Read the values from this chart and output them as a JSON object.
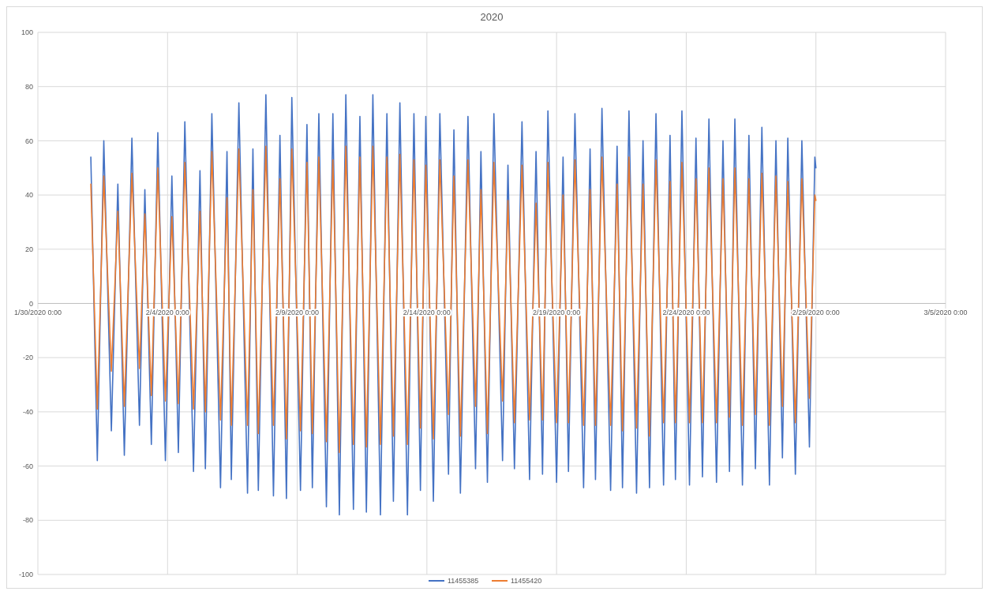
{
  "chart_data": {
    "type": "line",
    "title": "2020",
    "x": [
      "2020-02-01T01:00",
      "2020-02-01T07:00",
      "2020-02-01T13:00",
      "2020-02-01T20:00",
      "2020-02-02T02:00",
      "2020-02-02T08:00",
      "2020-02-02T15:00",
      "2020-02-02T22:00",
      "2020-02-03T03:00",
      "2020-02-03T09:00",
      "2020-02-03T15:00",
      "2020-02-03T22:00",
      "2020-02-04T04:00",
      "2020-02-04T10:00",
      "2020-02-04T16:00",
      "2020-02-05T00:00",
      "2020-02-05T06:00",
      "2020-02-05T11:00",
      "2020-02-05T17:00",
      "2020-02-06T01:00",
      "2020-02-06T07:00",
      "2020-02-06T11:00",
      "2020-02-06T18:00",
      "2020-02-07T02:00",
      "2020-02-07T07:00",
      "2020-02-07T12:00",
      "2020-02-07T19:00",
      "2020-02-08T02:00",
      "2020-02-08T08:00",
      "2020-02-08T14:00",
      "2020-02-08T19:00",
      "2020-02-09T03:00",
      "2020-02-09T09:00",
      "2020-02-09T14:00",
      "2020-02-09T20:00",
      "2020-02-10T03:00",
      "2020-02-10T09:00",
      "2020-02-10T15:00",
      "2020-02-10T21:00",
      "2020-02-11T04:00",
      "2020-02-11T10:00",
      "2020-02-11T16:00",
      "2020-02-11T22:00",
      "2020-02-12T05:00",
      "2020-02-12T11:00",
      "2020-02-12T17:00",
      "2020-02-12T23:00",
      "2020-02-13T06:00",
      "2020-02-13T12:00",
      "2020-02-13T18:00",
      "2020-02-13T23:00",
      "2020-02-14T06:00",
      "2020-02-14T12:00",
      "2020-02-14T20:00",
      "2020-02-15T01:00",
      "2020-02-15T07:00",
      "2020-02-15T14:00",
      "2020-02-15T21:00",
      "2020-02-16T02:00",
      "2020-02-16T08:00",
      "2020-02-16T14:00",
      "2020-02-16T22:00",
      "2020-02-17T03:00",
      "2020-02-17T09:00",
      "2020-02-17T16:00",
      "2020-02-17T23:00",
      "2020-02-18T05:00",
      "2020-02-18T11:00",
      "2020-02-18T16:00",
      "2020-02-19T00:00",
      "2020-02-19T06:00",
      "2020-02-19T11:00",
      "2020-02-19T17:00",
      "2020-02-20T01:00",
      "2020-02-20T07:00",
      "2020-02-20T12:00",
      "2020-02-20T18:00",
      "2020-02-21T02:00",
      "2020-02-21T08:00",
      "2020-02-21T13:00",
      "2020-02-21T19:00",
      "2020-02-22T02:00",
      "2020-02-22T08:00",
      "2020-02-22T14:00",
      "2020-02-22T20:00",
      "2020-02-23T03:00",
      "2020-02-23T09:00",
      "2020-02-23T14:00",
      "2020-02-23T20:00",
      "2020-02-24T03:00",
      "2020-02-24T09:00",
      "2020-02-24T15:00",
      "2020-02-24T21:00",
      "2020-02-25T04:00",
      "2020-02-25T10:00",
      "2020-02-25T16:00",
      "2020-02-25T21:00",
      "2020-02-26T04:00",
      "2020-02-26T10:00",
      "2020-02-26T16:00",
      "2020-02-26T22:00",
      "2020-02-27T05:00",
      "2020-02-27T11:00",
      "2020-02-27T17:00",
      "2020-02-27T22:00",
      "2020-02-28T05:00",
      "2020-02-28T11:00",
      "2020-02-28T18:00",
      "2020-02-28T23:00",
      "2020-02-29T00:00"
    ],
    "series": [
      {
        "name": "11455385",
        "color": "#4472c4",
        "values": [
          54,
          -58,
          60,
          -47,
          44,
          -56,
          61,
          -45,
          42,
          -52,
          63,
          -58,
          47,
          -55,
          67,
          -62,
          49,
          -61,
          70,
          -68,
          56,
          -65,
          74,
          -70,
          57,
          -69,
          77,
          -71,
          62,
          -72,
          76,
          -69,
          66,
          -68,
          70,
          -75,
          70,
          -78,
          77,
          -76,
          69,
          -77,
          77,
          -78,
          70,
          -73,
          74,
          -78,
          70,
          -69,
          69,
          -73,
          70,
          -63,
          64,
          -70,
          69,
          -61,
          56,
          -66,
          70,
          -58,
          51,
          -61,
          67,
          -65,
          56,
          -63,
          71,
          -66,
          54,
          -62,
          70,
          -68,
          57,
          -65,
          72,
          -69,
          58,
          -68,
          71,
          -70,
          60,
          -68,
          70,
          -67,
          62,
          -65,
          71,
          -67,
          61,
          -64,
          68,
          -66,
          60,
          -62,
          68,
          -67,
          62,
          -61,
          65,
          -67,
          60,
          -57,
          61,
          -63,
          60,
          -53,
          54,
          50
        ]
      },
      {
        "name": "11455420",
        "color": "#ed7d31",
        "values": [
          44,
          -39,
          47,
          -25,
          34,
          -38,
          48,
          -24,
          33,
          -34,
          50,
          -36,
          32,
          -37,
          52,
          -39,
          34,
          -40,
          56,
          -43,
          39,
          -45,
          57,
          -45,
          42,
          -48,
          58,
          -45,
          46,
          -50,
          57,
          -47,
          52,
          -48,
          54,
          -51,
          53,
          -55,
          58,
          -52,
          54,
          -53,
          58,
          -52,
          54,
          -49,
          55,
          -52,
          53,
          -46,
          51,
          -50,
          53,
          -41,
          47,
          -49,
          53,
          -38,
          42,
          -48,
          52,
          -36,
          38,
          -44,
          51,
          -43,
          37,
          -43,
          52,
          -44,
          40,
          -44,
          53,
          -45,
          42,
          -45,
          54,
          -45,
          44,
          -47,
          54,
          -46,
          44,
          -49,
          53,
          -44,
          45,
          -44,
          52,
          -44,
          46,
          -44,
          50,
          -44,
          46,
          -42,
          50,
          -45,
          46,
          -41,
          48,
          -45,
          47,
          -38,
          45,
          -44,
          46,
          -35,
          40,
          38
        ]
      }
    ],
    "xlim": [
      "2020-01-30",
      "2020-03-05"
    ],
    "xticks": [
      {
        "value": "2020-01-30",
        "label": "1/30/2020 0:00"
      },
      {
        "value": "2020-02-04",
        "label": "2/4/2020 0:00"
      },
      {
        "value": "2020-02-09",
        "label": "2/9/2020 0:00"
      },
      {
        "value": "2020-02-14",
        "label": "2/14/2020 0:00"
      },
      {
        "value": "2020-02-19",
        "label": "2/19/2020 0:00"
      },
      {
        "value": "2020-02-24",
        "label": "2/24/2020 0:00"
      },
      {
        "value": "2020-02-29",
        "label": "2/29/2020 0:00"
      },
      {
        "value": "2020-03-05",
        "label": "3/5/2020 0:00"
      }
    ],
    "ylim": [
      -100,
      100
    ],
    "yticks": [
      -100,
      -80,
      -60,
      -40,
      -20,
      0,
      20,
      40,
      60,
      80,
      100
    ],
    "grid": true,
    "legend": "bottom",
    "line_style": "solid"
  }
}
